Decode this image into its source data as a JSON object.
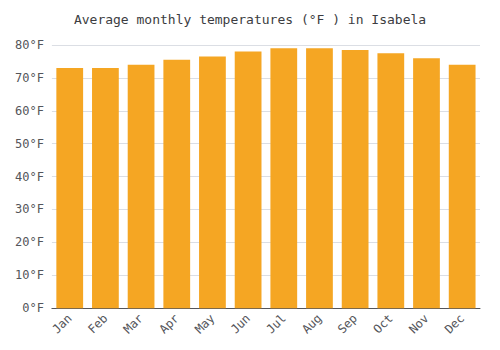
{
  "chart_data": {
    "type": "bar",
    "title": "Average monthly temperatures (°F ) in Isabela",
    "categories": [
      "Jan",
      "Feb",
      "Mar",
      "Apr",
      "May",
      "Jun",
      "Jul",
      "Aug",
      "Sep",
      "Oct",
      "Nov",
      "Dec"
    ],
    "values": [
      73.0,
      73.0,
      74.0,
      75.5,
      76.5,
      78.0,
      79.0,
      79.0,
      78.5,
      77.5,
      76.0,
      74.0
    ],
    "color": "#F5A623",
    "ylim": [
      0,
      80
    ],
    "yticks": [
      {
        "value": 0,
        "label": "0°F"
      },
      {
        "value": 10,
        "label": "10°F"
      },
      {
        "value": 20,
        "label": "20°F"
      },
      {
        "value": 30,
        "label": "30°F"
      },
      {
        "value": 40,
        "label": "40°F"
      },
      {
        "value": 50,
        "label": "50°F"
      },
      {
        "value": 60,
        "label": "60°F"
      },
      {
        "value": 70,
        "label": "70°F"
      },
      {
        "value": 80,
        "label": "80°F"
      }
    ],
    "grid": true
  }
}
